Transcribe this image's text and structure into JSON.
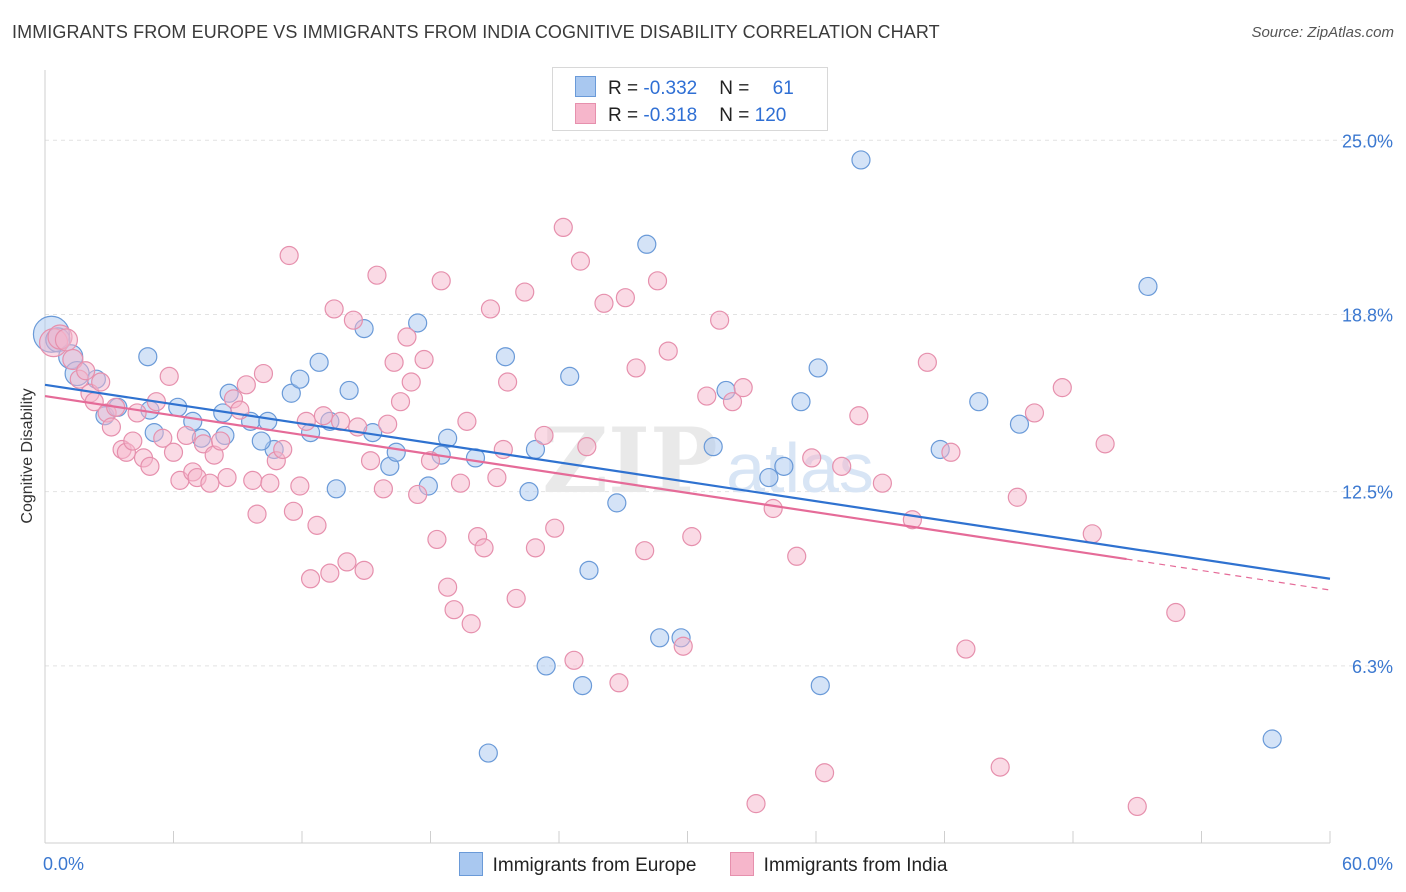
{
  "title": "IMMIGRANTS FROM EUROPE VS IMMIGRANTS FROM INDIA COGNITIVE DISABILITY CORRELATION CHART",
  "source": "Source: ZipAtlas.com",
  "watermark": {
    "zip": "ZIP",
    "atlas": "atlas"
  },
  "legend": {
    "europe": {
      "r_label": "R = ",
      "r_value": "-0.332",
      "n_label": "N = ",
      "n_value": "61"
    },
    "india": {
      "r_label": "R = ",
      "r_value": "-0.318",
      "n_label": "N = ",
      "n_value": "120"
    }
  },
  "colors": {
    "europe_fill": "#a9c8f0",
    "europe_stroke": "#6a9ad8",
    "europe_line": "#2f72d0",
    "india_fill": "#f6b6cb",
    "india_stroke": "#e690ad",
    "india_line": "#e56b98",
    "grid": "#e2e2e2",
    "tick_label": "#3b78d0"
  },
  "chart_data": {
    "type": "scatter",
    "title": "IMMIGRANTS FROM EUROPE VS IMMIGRANTS FROM INDIA COGNITIVE DISABILITY CORRELATION CHART",
    "xlabel": "",
    "ylabel": "Cognitive Disability",
    "xlim": [
      0,
      60
    ],
    "ylim": [
      0,
      27.5
    ],
    "x_tick_labels": [
      "0.0%",
      "60.0%"
    ],
    "y_ticks": [
      6.3,
      12.5,
      18.8,
      25.0
    ],
    "y_tick_labels": [
      "6.3%",
      "12.5%",
      "18.8%",
      "25.0%"
    ],
    "grid": true,
    "legend_position": "top-center",
    "series": [
      {
        "name": "Immigrants from Europe",
        "r": -0.332,
        "n": 61,
        "trend": {
          "x0": 0,
          "y0": 16.3,
          "x1": 60,
          "y1": 9.4
        },
        "points": [
          [
            0.3,
            18.1,
            18
          ],
          [
            0.6,
            17.9,
            12
          ],
          [
            1.2,
            17.3,
            12
          ],
          [
            1.5,
            16.7,
            12
          ],
          [
            2.4,
            16.5,
            9
          ],
          [
            2.8,
            15.2,
            9
          ],
          [
            3.4,
            15.5,
            9
          ],
          [
            4.8,
            17.3,
            9
          ],
          [
            4.9,
            15.4,
            9
          ],
          [
            6.2,
            15.5,
            9
          ],
          [
            6.9,
            15.0,
            9
          ],
          [
            8.3,
            15.3,
            9
          ],
          [
            8.4,
            14.5,
            9
          ],
          [
            8.6,
            16.0,
            9
          ],
          [
            9.6,
            15.0,
            9
          ],
          [
            10.4,
            15.0,
            9
          ],
          [
            10.7,
            14.0,
            9
          ],
          [
            11.5,
            16.0,
            9
          ],
          [
            11.9,
            16.5,
            9
          ],
          [
            12.8,
            17.1,
            9
          ],
          [
            13.3,
            15.0,
            9
          ],
          [
            13.6,
            12.6,
            9
          ],
          [
            14.2,
            16.1,
            9
          ],
          [
            14.9,
            18.3,
            9
          ],
          [
            15.3,
            14.6,
            9
          ],
          [
            16.1,
            13.4,
            9
          ],
          [
            16.4,
            13.9,
            9
          ],
          [
            17.4,
            18.5,
            9
          ],
          [
            17.9,
            12.7,
            9
          ],
          [
            18.5,
            13.8,
            9
          ],
          [
            18.8,
            14.4,
            9
          ],
          [
            20.7,
            3.2,
            9
          ],
          [
            21.5,
            17.3,
            9
          ],
          [
            22.6,
            12.5,
            9
          ],
          [
            22.9,
            14.0,
            9
          ],
          [
            23.4,
            6.3,
            9
          ],
          [
            24.5,
            16.6,
            9
          ],
          [
            25.1,
            5.6,
            9
          ],
          [
            25.4,
            9.7,
            9
          ],
          [
            26.7,
            12.1,
            9
          ],
          [
            28.1,
            21.3,
            9
          ],
          [
            28.7,
            7.3,
            9
          ],
          [
            29.7,
            7.3,
            9
          ],
          [
            31.2,
            14.1,
            9
          ],
          [
            31.8,
            16.1,
            9
          ],
          [
            33.8,
            13.0,
            9
          ],
          [
            34.5,
            13.4,
            9
          ],
          [
            35.3,
            15.7,
            9
          ],
          [
            36.1,
            16.9,
            9
          ],
          [
            36.2,
            5.6,
            9
          ],
          [
            38.1,
            24.3,
            9
          ],
          [
            41.8,
            14.0,
            9
          ],
          [
            43.6,
            15.7,
            9
          ],
          [
            45.5,
            14.9,
            9
          ],
          [
            51.5,
            19.8,
            9
          ],
          [
            57.3,
            3.7,
            9
          ],
          [
            10.1,
            14.3,
            9
          ],
          [
            5.1,
            14.6,
            9
          ],
          [
            7.3,
            14.4,
            9
          ],
          [
            20.1,
            13.7,
            9
          ],
          [
            12.4,
            14.6,
            9
          ]
        ]
      },
      {
        "name": "Immigrants from India",
        "r": -0.318,
        "n": 120,
        "trend": {
          "x0": 0,
          "y0": 15.9,
          "x1": 50.5,
          "y1": 10.1
        },
        "trend_dashed": {
          "x0": 50.5,
          "y0": 10.1,
          "x1": 60,
          "y1": 9.0
        },
        "points": [
          [
            0.4,
            17.8,
            14
          ],
          [
            0.7,
            18.0,
            12
          ],
          [
            1.0,
            17.9,
            11
          ],
          [
            1.3,
            17.2,
            10
          ],
          [
            1.6,
            16.5,
            9
          ],
          [
            1.9,
            16.8,
            9
          ],
          [
            2.1,
            16.0,
            9
          ],
          [
            2.3,
            15.7,
            9
          ],
          [
            2.6,
            16.4,
            9
          ],
          [
            2.9,
            15.3,
            9
          ],
          [
            3.1,
            14.8,
            9
          ],
          [
            3.3,
            15.5,
            9
          ],
          [
            3.6,
            14.0,
            9
          ],
          [
            3.8,
            13.9,
            9
          ],
          [
            4.1,
            14.3,
            9
          ],
          [
            4.3,
            15.3,
            9
          ],
          [
            4.6,
            13.7,
            9
          ],
          [
            4.9,
            13.4,
            9
          ],
          [
            5.2,
            15.7,
            9
          ],
          [
            5.5,
            14.4,
            9
          ],
          [
            5.8,
            16.6,
            9
          ],
          [
            6.0,
            13.9,
            9
          ],
          [
            6.3,
            12.9,
            9
          ],
          [
            6.6,
            14.5,
            9
          ],
          [
            6.9,
            13.2,
            9
          ],
          [
            7.1,
            13.0,
            9
          ],
          [
            7.4,
            14.2,
            9
          ],
          [
            7.7,
            12.8,
            9
          ],
          [
            7.9,
            13.8,
            9
          ],
          [
            8.2,
            14.3,
            9
          ],
          [
            8.5,
            13.0,
            9
          ],
          [
            8.8,
            15.8,
            9
          ],
          [
            9.1,
            15.4,
            9
          ],
          [
            9.4,
            16.3,
            9
          ],
          [
            9.7,
            12.9,
            9
          ],
          [
            9.9,
            11.7,
            9
          ],
          [
            10.2,
            16.7,
            9
          ],
          [
            10.5,
            12.8,
            9
          ],
          [
            10.8,
            13.6,
            9
          ],
          [
            11.1,
            14.0,
            9
          ],
          [
            11.4,
            20.9,
            9
          ],
          [
            11.6,
            11.8,
            9
          ],
          [
            11.9,
            12.7,
            9
          ],
          [
            12.2,
            15.0,
            9
          ],
          [
            12.4,
            9.4,
            9
          ],
          [
            12.7,
            11.3,
            9
          ],
          [
            13.0,
            15.2,
            9
          ],
          [
            13.3,
            9.6,
            9
          ],
          [
            13.5,
            19.0,
            9
          ],
          [
            13.8,
            15.0,
            9
          ],
          [
            14.1,
            10.0,
            9
          ],
          [
            14.4,
            18.6,
            9
          ],
          [
            14.6,
            14.8,
            9
          ],
          [
            14.9,
            9.7,
            9
          ],
          [
            15.2,
            13.6,
            9
          ],
          [
            15.5,
            20.2,
            9
          ],
          [
            15.8,
            12.6,
            9
          ],
          [
            16.0,
            14.9,
            9
          ],
          [
            16.3,
            17.1,
            9
          ],
          [
            16.6,
            15.7,
            9
          ],
          [
            16.9,
            18.0,
            9
          ],
          [
            17.1,
            16.4,
            9
          ],
          [
            17.4,
            12.4,
            9
          ],
          [
            17.7,
            17.2,
            9
          ],
          [
            18.0,
            13.6,
            9
          ],
          [
            18.3,
            10.8,
            9
          ],
          [
            18.5,
            20.0,
            9
          ],
          [
            18.8,
            9.1,
            9
          ],
          [
            19.1,
            8.3,
            9
          ],
          [
            19.4,
            12.8,
            9
          ],
          [
            19.7,
            15.0,
            9
          ],
          [
            19.9,
            7.8,
            9
          ],
          [
            20.2,
            10.9,
            9
          ],
          [
            20.5,
            10.5,
            9
          ],
          [
            20.8,
            19.0,
            9
          ],
          [
            21.1,
            13.0,
            9
          ],
          [
            21.4,
            14.0,
            9
          ],
          [
            21.6,
            16.4,
            9
          ],
          [
            22.0,
            8.7,
            9
          ],
          [
            22.4,
            19.6,
            9
          ],
          [
            22.9,
            10.5,
            9
          ],
          [
            23.3,
            14.5,
            9
          ],
          [
            23.8,
            11.2,
            9
          ],
          [
            24.2,
            21.9,
            9
          ],
          [
            24.7,
            6.5,
            9
          ],
          [
            25.0,
            20.7,
            9
          ],
          [
            25.3,
            14.1,
            9
          ],
          [
            26.1,
            19.2,
            9
          ],
          [
            26.8,
            5.7,
            9
          ],
          [
            27.1,
            19.4,
            9
          ],
          [
            27.6,
            16.9,
            9
          ],
          [
            28.0,
            10.4,
            9
          ],
          [
            28.6,
            20.0,
            9
          ],
          [
            29.1,
            17.5,
            9
          ],
          [
            29.8,
            7.0,
            9
          ],
          [
            30.2,
            10.9,
            9
          ],
          [
            30.9,
            15.9,
            9
          ],
          [
            31.5,
            18.6,
            9
          ],
          [
            32.1,
            15.7,
            9
          ],
          [
            32.6,
            16.2,
            9
          ],
          [
            33.2,
            1.4,
            9
          ],
          [
            34.0,
            11.9,
            9
          ],
          [
            35.1,
            10.2,
            9
          ],
          [
            35.8,
            13.7,
            9
          ],
          [
            36.4,
            2.5,
            9
          ],
          [
            37.2,
            13.4,
            9
          ],
          [
            38.0,
            15.2,
            9
          ],
          [
            39.1,
            12.8,
            9
          ],
          [
            40.5,
            11.5,
            9
          ],
          [
            41.2,
            17.1,
            9
          ],
          [
            42.3,
            13.9,
            9
          ],
          [
            43.0,
            6.9,
            9
          ],
          [
            44.6,
            2.7,
            9
          ],
          [
            45.4,
            12.3,
            9
          ],
          [
            46.2,
            15.3,
            9
          ],
          [
            47.5,
            16.2,
            9
          ],
          [
            48.9,
            11.0,
            9
          ],
          [
            49.5,
            14.2,
            9
          ],
          [
            51.0,
            1.3,
            9
          ],
          [
            52.8,
            8.2,
            9
          ]
        ]
      }
    ]
  },
  "bottom_legend": {
    "europe_label": "Immigrants from Europe",
    "india_label": "Immigrants from India"
  }
}
